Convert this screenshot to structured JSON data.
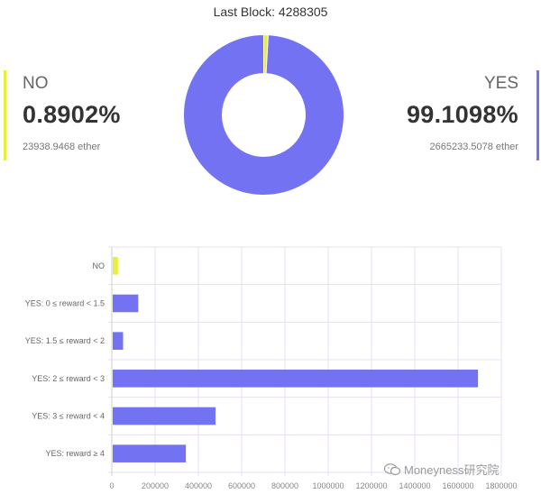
{
  "header": {
    "last_block": "Last Block: 4288305"
  },
  "no_panel": {
    "label": "NO",
    "percent": "0.8902%",
    "ether": "23938.9468 ether",
    "color": "#e8ef3b"
  },
  "yes_panel": {
    "label": "YES",
    "percent": "99.1098%",
    "ether": "2665233.5078 ether",
    "color": "#7272f2"
  },
  "watermark": {
    "text": "Moneyness研究院"
  },
  "chart_data": [
    {
      "type": "pie",
      "labels": [
        "NO",
        "YES"
      ],
      "values": [
        0.8902,
        99.1098
      ],
      "colors": [
        "#e8ef3b",
        "#7272f2"
      ]
    },
    {
      "type": "bar",
      "orientation": "horizontal",
      "categories": [
        "NO",
        "YES: 0 ≤ reward < 1.5",
        "YES: 1.5 ≤ reward < 2",
        "YES: 2 ≤ reward < 3",
        "YES: 3 ≤ reward < 4",
        "YES: reward ≥ 4"
      ],
      "values": [
        23939,
        118000,
        48000,
        1688000,
        475000,
        338000
      ],
      "colors": [
        "#e8ef3b",
        "#7272f2",
        "#7272f2",
        "#7272f2",
        "#7272f2",
        "#7272f2"
      ],
      "xlim": [
        0,
        1800000
      ],
      "xticks": [
        0,
        200000,
        400000,
        600000,
        800000,
        1000000,
        1200000,
        1400000,
        1600000,
        1800000
      ],
      "grid": true
    }
  ]
}
